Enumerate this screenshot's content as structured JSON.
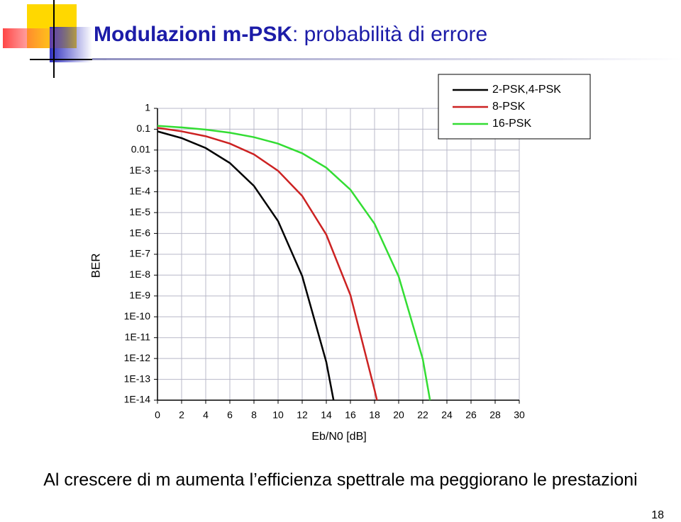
{
  "slide": {
    "title_bold": "Modulazioni m-PSK",
    "title_rest": ": probabilità di errore",
    "caption": "Al crescere di m aumenta l’efficienza spettrale ma peggiorano le prestazioni",
    "page_number": "18"
  },
  "chart_data": {
    "type": "line",
    "x_label": "Eb/N0 [dB]",
    "y_label": "BER",
    "yscale": "log",
    "grid": true,
    "legend": "upper right",
    "xlim": [
      0,
      30
    ],
    "xticks": [
      0,
      2,
      4,
      6,
      8,
      10,
      12,
      14,
      16,
      18,
      20,
      22,
      24,
      26,
      28,
      30
    ],
    "ylim": [
      1e-14,
      1
    ],
    "yticks": [
      1,
      0.1,
      0.01,
      {
        "value": 0.001,
        "label": "1E-3"
      },
      {
        "value": 0.0001,
        "label": "1E-4"
      },
      {
        "value": 1e-05,
        "label": "1E-5"
      },
      {
        "value": 1e-06,
        "label": "1E-6"
      },
      {
        "value": 1e-07,
        "label": "1E-7"
      },
      {
        "value": 1e-08,
        "label": "1E-8"
      },
      {
        "value": 1e-09,
        "label": "1E-9"
      },
      {
        "value": 1e-10,
        "label": "1E-10"
      },
      {
        "value": 1e-11,
        "label": "1E-11"
      },
      {
        "value": 1e-12,
        "label": "1E-12"
      },
      {
        "value": 1e-13,
        "label": "1E-13"
      },
      {
        "value": 1e-14,
        "label": "1E-14"
      }
    ],
    "series": [
      {
        "name": "2-PSK,4-PSK",
        "color": "#000000",
        "x": [
          0,
          2,
          4,
          6,
          8,
          10,
          12,
          14,
          14.6
        ],
        "values": [
          0.0786,
          0.0375,
          0.0125,
          0.00239,
          0.00019,
          3.9e-06,
          9e-09,
          6.7e-13,
          1e-14
        ]
      },
      {
        "name": "8-PSK",
        "color": "#cc2222",
        "x": [
          0,
          2,
          4,
          6,
          8,
          10,
          12,
          14,
          16,
          18,
          18.2
        ],
        "values": [
          0.116,
          0.079,
          0.046,
          0.0205,
          0.0062,
          0.00101,
          6.3e-05,
          8.7e-07,
          1.1e-09,
          3.1e-14,
          1e-14
        ]
      },
      {
        "name": "16-PSK",
        "color": "#33dd33",
        "x": [
          0,
          2,
          4,
          6,
          8,
          10,
          12,
          14,
          16,
          18,
          20,
          22,
          22.6
        ],
        "values": [
          0.145,
          0.122,
          0.0954,
          0.0678,
          0.0415,
          0.0203,
          0.007,
          0.00142,
          0.000125,
          2.9e-06,
          8.6e-09,
          9.3e-13,
          1e-14
        ]
      }
    ]
  }
}
